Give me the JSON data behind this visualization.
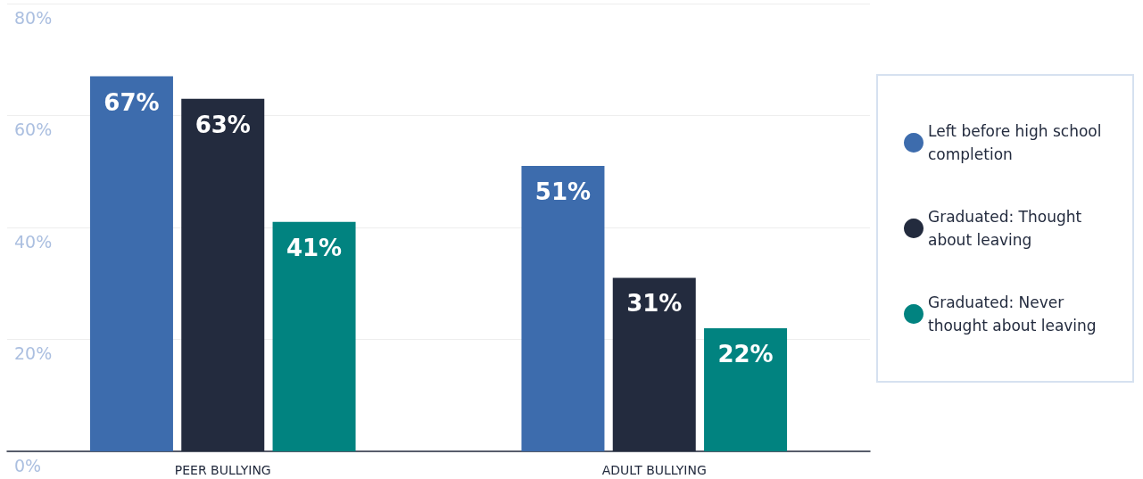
{
  "chart_data": {
    "type": "bar",
    "categories": [
      "PEER BULLYING",
      "ADULT BULLYING"
    ],
    "series": [
      {
        "name": "Left before high school completion",
        "color": "#3d6cad",
        "values": [
          67,
          51
        ]
      },
      {
        "name": "Graduated: Thought about leaving",
        "color": "#232b3e",
        "values": [
          63,
          31
        ]
      },
      {
        "name": "Graduated: Never thought about leaving",
        "color": "#018380",
        "values": [
          41,
          22
        ]
      }
    ],
    "ylim": [
      0,
      80
    ],
    "yticks": [
      {
        "value": 0,
        "label": "0%"
      },
      {
        "value": 20,
        "label": "20%"
      },
      {
        "value": 40,
        "label": "40%"
      },
      {
        "value": 60,
        "label": "60%"
      },
      {
        "value": 80,
        "label": "80%"
      }
    ],
    "value_labels": [
      [
        "67%",
        "51%"
      ],
      [
        "63%",
        "31%"
      ],
      [
        "41%",
        "22%"
      ]
    ],
    "grid": "y",
    "legend": "right"
  }
}
